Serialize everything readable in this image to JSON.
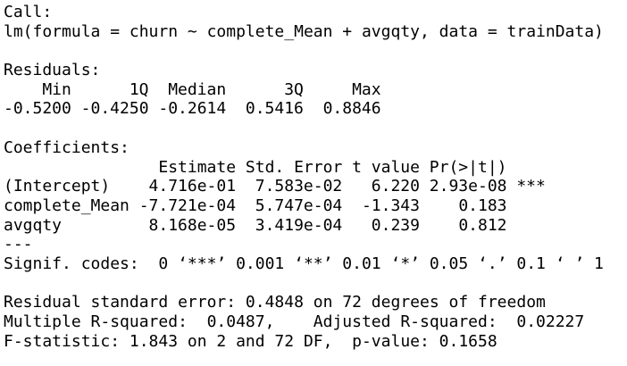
{
  "call": {
    "label": "Call:",
    "formula": "lm(formula = churn ~ complete_Mean + avgqty, data = trainData)"
  },
  "residuals": {
    "label": "Residuals:",
    "columns": [
      "Min",
      "1Q",
      "Median",
      "3Q",
      "Max"
    ],
    "values": [
      "-0.5200",
      "-0.4250",
      "-0.2614",
      "0.5416",
      "0.8846"
    ]
  },
  "coefficients": {
    "label": "Coefficients:",
    "columns": [
      "Estimate",
      "Std. Error",
      "t value",
      "Pr(>|t|)"
    ],
    "rows": [
      {
        "name": "(Intercept)",
        "cells": [
          "4.716e-01",
          "7.583e-02",
          "6.220",
          "2.93e-08"
        ],
        "signif": "***"
      },
      {
        "name": "complete_Mean",
        "cells": [
          "-7.721e-04",
          "5.747e-04",
          "-1.343",
          "0.183"
        ]
      },
      {
        "name": "avgqty",
        "cells": [
          "8.168e-05",
          "3.419e-04",
          "0.239",
          "0.812"
        ]
      }
    ]
  },
  "separator": "---",
  "signif_codes": "Signif. codes:  0 ‘***’ 0.001 ‘**’ 0.01 ‘*’ 0.05 ‘.’ 0.1 ‘ ’ 1",
  "summary": [
    "Residual standard error: 0.4848 on 72 degrees of freedom",
    "Multiple R-squared:  0.0487,    Adjusted R-squared:  0.02227",
    "F-statistic: 1.843 on 2 and 72 DF,  p-value: 0.1658"
  ]
}
